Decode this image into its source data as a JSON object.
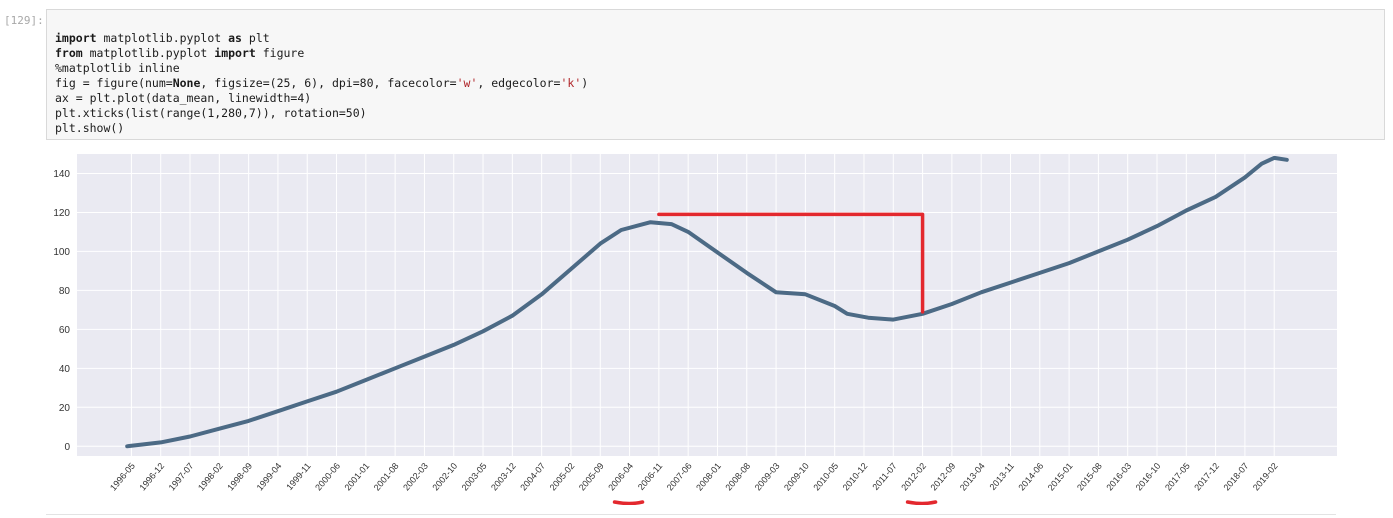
{
  "cell": {
    "prompt": "[129]:",
    "code": [
      [
        {
          "t": "import",
          "k": 1
        },
        {
          "t": " matplotlib.pyplot "
        },
        {
          "t": "as",
          "k": 1
        },
        {
          "t": " plt"
        }
      ],
      [
        {
          "t": "from",
          "k": 1
        },
        {
          "t": " matplotlib.pyplot "
        },
        {
          "t": "import",
          "k": 1
        },
        {
          "t": " figure"
        }
      ],
      [
        {
          "t": "%matplotlib inline"
        }
      ],
      [
        {
          "t": "fig = figure(num="
        },
        {
          "t": "None",
          "k": 1
        },
        {
          "t": ", figsize=(25, 6), dpi=80, facecolor="
        },
        {
          "t": "'w'",
          "s": 1
        },
        {
          "t": ", edgecolor="
        },
        {
          "t": "'k'",
          "s": 1
        },
        {
          "t": ")"
        }
      ],
      [
        {
          "t": "ax = plt.plot(data_mean, linewidth=4)"
        }
      ],
      [
        {
          "t": "plt.xticks(list(range(1,280,7)), rotation=50)"
        }
      ],
      [
        {
          "t": "plt.show()"
        }
      ]
    ]
  },
  "chart_data": {
    "type": "line",
    "title": "",
    "xlabel": "",
    "ylabel": "",
    "ylim": [
      -5,
      150
    ],
    "xlim": [
      -12,
      289
    ],
    "grid": true,
    "background": "#eaeaf2",
    "line_color": "#4c6a85",
    "yticks": [
      0,
      20,
      40,
      60,
      80,
      100,
      120,
      140
    ],
    "xtick_positions": [
      1,
      8,
      15,
      22,
      29,
      36,
      43,
      50,
      57,
      64,
      71,
      78,
      85,
      92,
      99,
      106,
      113,
      120,
      127,
      134,
      141,
      148,
      155,
      162,
      169,
      176,
      183,
      190,
      197,
      204,
      211,
      218,
      225,
      232,
      239,
      246,
      253,
      260,
      267,
      274
    ],
    "xtick_labels": [
      "1996-05",
      "1996-12",
      "1997-07",
      "1998-02",
      "1998-09",
      "1999-04",
      "1999-11",
      "2000-06",
      "2001-01",
      "2001-08",
      "2002-03",
      "2002-10",
      "2003-05",
      "2003-12",
      "2004-07",
      "2005-02",
      "2005-09",
      "2006-04",
      "2006-11",
      "2007-06",
      "2008-01",
      "2008-08",
      "2009-03",
      "2009-10",
      "2010-05",
      "2010-12",
      "2011-07",
      "2012-02",
      "2012-09",
      "2013-04",
      "2013-11",
      "2014-06",
      "2015-01",
      "2015-08",
      "2016-03",
      "2016-10",
      "2017-05",
      "2017-12",
      "2018-07",
      "2019-02"
    ],
    "series": [
      {
        "x": [
          0,
          8,
          15,
          22,
          29,
          36,
          43,
          50,
          57,
          64,
          71,
          78,
          85,
          92,
          99,
          106,
          113,
          118,
          125,
          130,
          134,
          140,
          148,
          155,
          162,
          169,
          172,
          177,
          183,
          190,
          197,
          204,
          211,
          218,
          225,
          232,
          239,
          246,
          253,
          260,
          267,
          271,
          274,
          277
        ],
        "y": [
          0,
          2,
          5,
          9,
          13,
          18,
          23,
          28,
          34,
          40,
          46,
          52,
          59,
          67,
          78,
          91,
          104,
          111,
          115,
          114,
          110,
          101,
          89,
          79,
          78,
          72,
          68,
          66,
          65,
          68,
          73,
          79,
          84,
          89,
          94,
          100,
          106,
          113,
          121,
          128,
          138,
          145,
          148,
          147
        ]
      }
    ],
    "annotations": [
      {
        "type": "bracket",
        "color": "#e3282e",
        "x_start": 127,
        "x_end": 190,
        "y_top": 119,
        "y_bottom": 69
      },
      {
        "type": "underline",
        "color": "#e3282e",
        "at_label": "2006-04"
      },
      {
        "type": "underline",
        "color": "#e3282e",
        "at_label": "2012-02"
      }
    ]
  }
}
